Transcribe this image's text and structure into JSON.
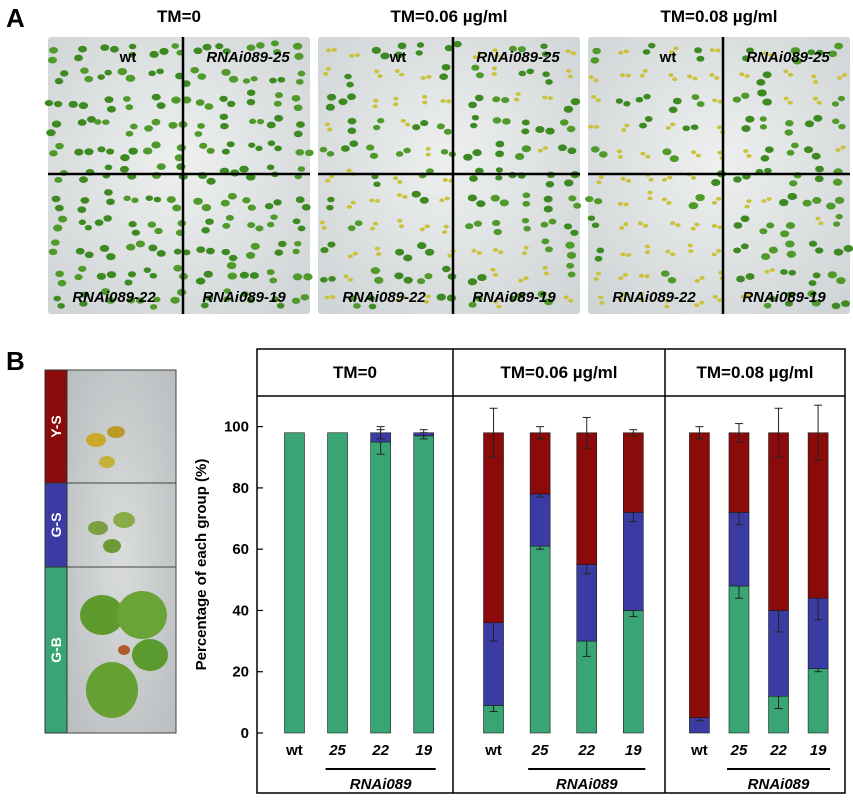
{
  "panel_a": {
    "letter": "A",
    "plates": [
      {
        "header": "TM=0",
        "labels": {
          "tl": "wt",
          "tr": "RNAi089-25",
          "bl": "RNAi089-22",
          "br": "RNAi089-19"
        },
        "yellow_ratio": 0.0
      },
      {
        "header": "TM=0.06 µg/ml",
        "labels": {
          "tl": "wt",
          "tr": "RNAi089-25",
          "bl": "RNAi089-22",
          "br": "RNAi089-19"
        },
        "yellow_ratio": 0.5
      },
      {
        "header": "TM=0.08 µg/ml",
        "labels": {
          "tl": "wt",
          "tr": "RNAi089-25",
          "bl": "RNAi089-22",
          "br": "RNAi089-19"
        },
        "yellow_ratio": 0.75
      }
    ]
  },
  "panel_b": {
    "letter": "B",
    "legend": [
      {
        "label": "Y-S",
        "color": "#8b0a0a"
      },
      {
        "label": "G-S",
        "color": "#3a3ca4"
      },
      {
        "label": "G-B",
        "color": "#3aa574"
      }
    ]
  },
  "chart_data": {
    "type": "bar",
    "stacked": true,
    "ylabel": "Percentage of each group (%)",
    "ylim": [
      0,
      110
    ],
    "yticks": [
      0,
      20,
      40,
      60,
      80,
      100
    ],
    "group_label": "RNAi089",
    "categories": [
      "wt",
      "25",
      "22",
      "19"
    ],
    "colors": {
      "G-B": "#3aa574",
      "G-S": "#3a3ca4",
      "Y-S": "#8b0a0a"
    },
    "panels": [
      {
        "title": "TM=0",
        "series": [
          {
            "name": "G-B",
            "values": [
              98,
              98,
              95,
              97
            ],
            "errors": [
              0,
              0,
              4,
              1
            ]
          },
          {
            "name": "G-S",
            "values": [
              0,
              0,
              3,
              1
            ],
            "errors": [
              0,
              0,
              2,
              1
            ]
          },
          {
            "name": "Y-S",
            "values": [
              0,
              0,
              0,
              0
            ],
            "errors": [
              0,
              0,
              0,
              0
            ]
          }
        ]
      },
      {
        "title": "TM=0.06 µg/ml",
        "series": [
          {
            "name": "G-B",
            "values": [
              9,
              61,
              30,
              40
            ],
            "errors": [
              2,
              1,
              5,
              2
            ]
          },
          {
            "name": "G-S",
            "values": [
              27,
              17,
              25,
              32
            ],
            "errors": [
              6,
              1,
              3,
              3
            ]
          },
          {
            "name": "Y-S",
            "values": [
              62,
              20,
              43,
              26
            ],
            "errors": [
              8,
              2,
              5,
              1
            ]
          }
        ]
      },
      {
        "title": "TM=0.08 µg/ml",
        "series": [
          {
            "name": "G-B",
            "values": [
              0,
              48,
              12,
              21
            ],
            "errors": [
              0,
              4,
              4,
              1
            ]
          },
          {
            "name": "G-S",
            "values": [
              5,
              24,
              28,
              23
            ],
            "errors": [
              1,
              4,
              7,
              7
            ]
          },
          {
            "name": "Y-S",
            "values": [
              93,
              26,
              58,
              54
            ],
            "errors": [
              2,
              3,
              8,
              9
            ]
          }
        ]
      }
    ]
  }
}
